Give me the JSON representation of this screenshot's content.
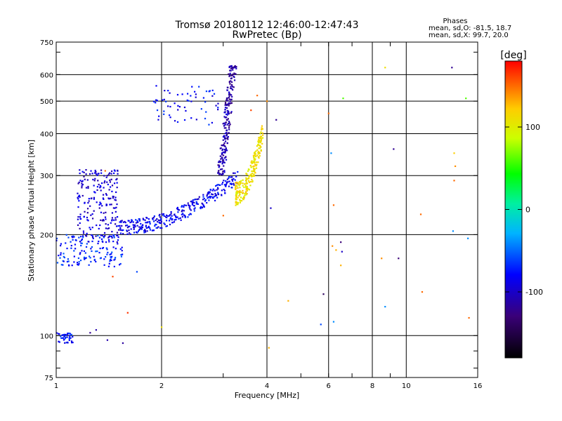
{
  "chart_data": {
    "type": "scatter",
    "title": "Tromsø 20180112 12:46:00-12:47:43",
    "subtitle": "RwPretec (Bp)",
    "info_lines": [
      "Phases",
      "mean, sd,O: -81.5, 18.7",
      "mean, sd,X: 99.7, 20.0"
    ],
    "xlabel": "Frequency [MHz]",
    "ylabel": "Stationary phase Virtual Height [km]",
    "x_scale": "log",
    "y_scale": "log",
    "xlim": [
      1,
      16
    ],
    "ylim": [
      75,
      750
    ],
    "x_ticks": [
      1,
      2,
      4,
      6,
      8,
      10,
      16
    ],
    "y_ticks": [
      75,
      100,
      200,
      300,
      400,
      500,
      600,
      750
    ],
    "grid": true,
    "colorbar": {
      "label": "[deg]",
      "min": -180,
      "max": 180,
      "ticks": [
        100,
        0,
        -100
      ]
    },
    "point_groups": [
      {
        "name": "o-low-cluster",
        "freq_range": [
          1.0,
          1.12
        ],
        "height_range": [
          95,
          102
        ],
        "phase": -75,
        "count": 40
      },
      {
        "name": "o-trace-low",
        "freq_range": [
          1.0,
          1.55
        ],
        "height_range": [
          160,
          200
        ],
        "phase": -70,
        "count": 140
      },
      {
        "name": "o-bulge",
        "freq_range": [
          1.15,
          1.5
        ],
        "height_range": [
          190,
          315
        ],
        "phase": -95,
        "count": 210
      },
      {
        "name": "o-main-trace",
        "freq_range": [
          1.5,
          3.3
        ],
        "height_range": [
          205,
          300
        ],
        "phase": -85,
        "count": 320
      },
      {
        "name": "o-cusp",
        "freq_range": [
          2.9,
          3.2
        ],
        "height_range": [
          300,
          640
        ],
        "phase": -110,
        "count": 220
      },
      {
        "name": "o-upper-branch",
        "freq_range": [
          1.9,
          2.9
        ],
        "height_range": [
          420,
          560
        ],
        "phase": -80,
        "count": 60
      },
      {
        "name": "x-trace",
        "freq_range": [
          3.25,
          3.9
        ],
        "height_range": [
          255,
          410
        ],
        "phase": 110,
        "count": 230
      },
      {
        "name": "scattered",
        "points": [
          [
            1.38,
            310,
            150
          ],
          [
            1.45,
            150,
            160
          ],
          [
            1.6,
            117,
            165
          ],
          [
            1.7,
            155,
            -60
          ],
          [
            1.4,
            97,
            -110
          ],
          [
            1.55,
            95,
            -115
          ],
          [
            1.25,
            102,
            -120
          ],
          [
            1.3,
            104,
            -110
          ],
          [
            2.0,
            106,
            110
          ],
          [
            3.0,
            228,
            150
          ],
          [
            3.6,
            470,
            160
          ],
          [
            3.75,
            520,
            150
          ],
          [
            4.0,
            500,
            140
          ],
          [
            4.25,
            440,
            -120
          ],
          [
            4.1,
            240,
            -100
          ],
          [
            4.05,
            92,
            130
          ],
          [
            4.6,
            127,
            130
          ],
          [
            5.7,
            108,
            -60
          ],
          [
            5.8,
            133,
            -140
          ],
          [
            6.0,
            460,
            150
          ],
          [
            6.1,
            350,
            -40
          ],
          [
            6.2,
            245,
            150
          ],
          [
            6.15,
            185,
            140
          ],
          [
            6.3,
            180,
            130
          ],
          [
            6.5,
            190,
            -130
          ],
          [
            6.55,
            178,
            -100
          ],
          [
            6.5,
            162,
            130
          ],
          [
            6.6,
            510,
            60
          ],
          [
            6.2,
            110,
            -40
          ],
          [
            8.5,
            170,
            140
          ],
          [
            8.7,
            630,
            110
          ],
          [
            9.2,
            360,
            -120
          ],
          [
            9.5,
            170,
            -130
          ],
          [
            8.7,
            122,
            -40
          ],
          [
            11.0,
            230,
            150
          ],
          [
            11.1,
            135,
            150
          ],
          [
            13.5,
            630,
            -120
          ],
          [
            13.7,
            350,
            120
          ],
          [
            13.8,
            320,
            140
          ],
          [
            13.7,
            290,
            150
          ],
          [
            13.6,
            205,
            -40
          ],
          [
            14.8,
            510,
            60
          ],
          [
            15.0,
            195,
            -40
          ],
          [
            15.1,
            113,
            150
          ]
        ]
      }
    ]
  }
}
